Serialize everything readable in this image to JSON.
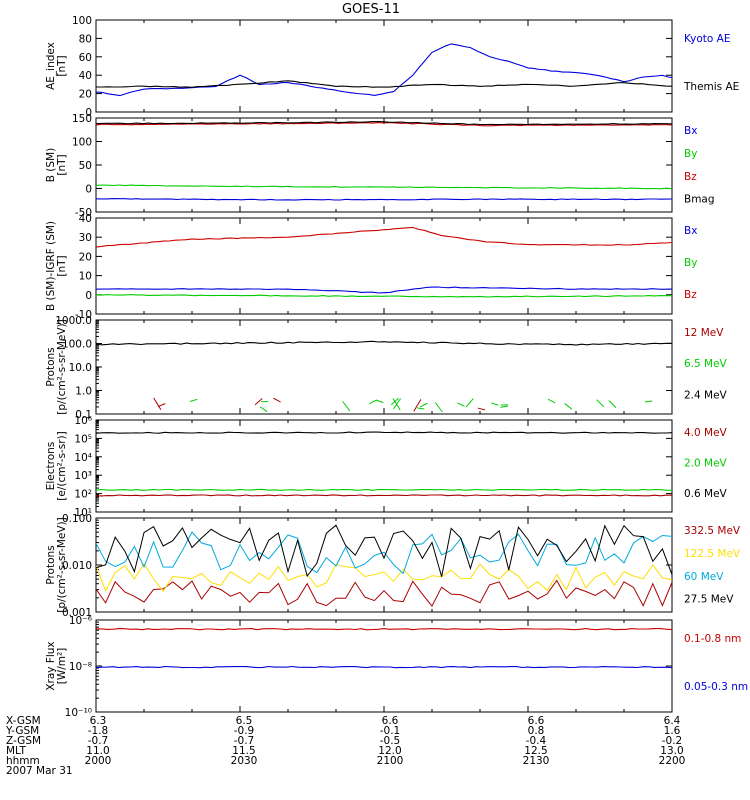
{
  "title": "GOES-11",
  "colors": {
    "blue": "#0000dd",
    "black": "#000000",
    "green": "#00cc00",
    "red": "#cc0000",
    "darkred": "#aa0000",
    "yellow": "#ffdd00",
    "cyan": "#00aadd"
  },
  "chart_data": [
    {
      "type": "line",
      "ylabel_lines": [
        "AE_index",
        "[nT]"
      ],
      "ylim": [
        0,
        100
      ],
      "yticks": [
        "0",
        "20",
        "40",
        "60",
        "80",
        "100"
      ],
      "x": [
        "2000",
        "2030",
        "2100",
        "2130",
        "2200"
      ],
      "series": [
        {
          "name": "Kyoto AE",
          "color": "#0000dd",
          "points": [
            [
              0,
              22
            ],
            [
              5,
              18
            ],
            [
              10,
              25
            ],
            [
              18,
              26
            ],
            [
              25,
              28
            ],
            [
              30,
              40
            ],
            [
              34,
              30
            ],
            [
              40,
              32
            ],
            [
              46,
              27
            ],
            [
              52,
              22
            ],
            [
              58,
              18
            ],
            [
              62,
              22
            ],
            [
              66,
              40
            ],
            [
              70,
              65
            ],
            [
              74,
              74
            ],
            [
              78,
              70
            ],
            [
              82,
              60
            ],
            [
              86,
              55
            ],
            [
              90,
              48
            ],
            [
              96,
              44
            ],
            [
              102,
              42
            ],
            [
              106,
              38
            ],
            [
              110,
              33
            ],
            [
              114,
              38
            ],
            [
              118,
              40
            ],
            [
              124,
              32
            ],
            [
              130,
              24
            ],
            [
              134,
              22
            ],
            [
              138,
              40
            ],
            [
              140,
              36
            ],
            [
              144,
              32
            ],
            [
              148,
              22
            ],
            [
              152,
              22
            ],
            [
              156,
              35
            ],
            [
              160,
              80
            ],
            [
              163,
              93
            ],
            [
              166,
              88
            ],
            [
              170,
              60
            ],
            [
              174,
              40
            ],
            [
              178,
              35
            ],
            [
              180,
              30
            ]
          ]
        },
        {
          "name": "Themis AE",
          "color": "#000000",
          "points": [
            [
              0,
              27
            ],
            [
              10,
              28
            ],
            [
              20,
              27
            ],
            [
              30,
              30
            ],
            [
              40,
              34
            ],
            [
              50,
              28
            ],
            [
              60,
              27
            ],
            [
              70,
              30
            ],
            [
              80,
              28
            ],
            [
              90,
              30
            ],
            [
              100,
              28
            ],
            [
              110,
              32
            ],
            [
              120,
              28
            ],
            [
              130,
              30
            ],
            [
              140,
              28
            ],
            [
              150,
              30
            ],
            [
              160,
              26
            ],
            [
              170,
              24
            ],
            [
              176,
              34
            ],
            [
              180,
              30
            ]
          ]
        }
      ]
    },
    {
      "type": "line",
      "ylabel_lines": [
        "B (SM)",
        "[nT]"
      ],
      "ylim": [
        -50,
        150
      ],
      "yticks": [
        "-50",
        "0",
        "50",
        "100",
        "150"
      ],
      "series": [
        {
          "name": "Bx",
          "color": "#0000dd",
          "points": [
            [
              0,
              -22
            ],
            [
              40,
              -24
            ],
            [
              80,
              -23
            ],
            [
              120,
              -23
            ],
            [
              180,
              -21
            ]
          ]
        },
        {
          "name": "By",
          "color": "#00cc00",
          "points": [
            [
              0,
              7
            ],
            [
              40,
              4
            ],
            [
              80,
              2
            ],
            [
              120,
              0
            ],
            [
              180,
              -3
            ]
          ]
        },
        {
          "name": "Bz",
          "color": "#cc0000",
          "points": [
            [
              0,
              136
            ],
            [
              40,
              138
            ],
            [
              60,
              140
            ],
            [
              80,
              134
            ],
            [
              120,
              136
            ],
            [
              140,
              134
            ],
            [
              180,
              140
            ]
          ]
        },
        {
          "name": "Bmag",
          "color": "#000000",
          "points": [
            [
              0,
              138
            ],
            [
              40,
              140
            ],
            [
              60,
              142
            ],
            [
              80,
              136
            ],
            [
              120,
              138
            ],
            [
              140,
              136
            ],
            [
              180,
              142
            ]
          ]
        }
      ]
    },
    {
      "type": "line",
      "ylabel_lines": [
        "B (SM)-IGRF (SM)",
        "[nT]"
      ],
      "ylim": [
        -10,
        40
      ],
      "yticks": [
        "-10",
        "0",
        "10",
        "20",
        "30",
        "40"
      ],
      "series": [
        {
          "name": "Bx",
          "color": "#0000dd",
          "points": [
            [
              0,
              3
            ],
            [
              40,
              3
            ],
            [
              60,
              1
            ],
            [
              70,
              4
            ],
            [
              100,
              3
            ],
            [
              140,
              3
            ],
            [
              180,
              3
            ]
          ]
        },
        {
          "name": "By",
          "color": "#00cc00",
          "points": [
            [
              0,
              0
            ],
            [
              40,
              -0.5
            ],
            [
              80,
              -1
            ],
            [
              120,
              -0.5
            ],
            [
              180,
              0
            ]
          ]
        },
        {
          "name": "Bz",
          "color": "#cc0000",
          "points": [
            [
              0,
              25
            ],
            [
              20,
              29
            ],
            [
              40,
              30
            ],
            [
              55,
              33
            ],
            [
              66,
              35
            ],
            [
              72,
              31
            ],
            [
              80,
              28
            ],
            [
              90,
              26
            ],
            [
              110,
              26
            ],
            [
              126,
              28
            ],
            [
              136,
              32
            ],
            [
              144,
              28
            ],
            [
              150,
              25
            ],
            [
              160,
              28
            ],
            [
              170,
              32
            ],
            [
              180,
              33
            ]
          ]
        }
      ]
    },
    {
      "type": "line",
      "ylabel_lines": [
        "Protons",
        "[p/(cm²-s-sr-MeV)]"
      ],
      "yscale": "log",
      "ylim": [
        0.1,
        1000
      ],
      "yticks": [
        "0.1",
        "1.0",
        "10.0",
        "100.0",
        "1000.0"
      ],
      "series": [
        {
          "name": "12 MeV",
          "color": "#aa0000",
          "points": []
        },
        {
          "name": "6.5 MeV",
          "color": "#00cc00",
          "points": []
        },
        {
          "name": "2.4 MeV",
          "color": "#000000",
          "points": [
            [
              0,
              90
            ],
            [
              20,
              100
            ],
            [
              40,
              110
            ],
            [
              60,
              120
            ],
            [
              80,
              100
            ],
            [
              100,
              90
            ],
            [
              120,
              100
            ],
            [
              140,
              95
            ],
            [
              160,
              100
            ],
            [
              180,
              130
            ]
          ]
        }
      ]
    },
    {
      "type": "line",
      "ylabel_lines": [
        "Electrons",
        "[e/(cm²-s-sr)]"
      ],
      "yscale": "log",
      "ylim": [
        10,
        1000000
      ],
      "yticks": [
        "10¹",
        "10²",
        "10³",
        "10⁴",
        "10⁵",
        "10⁶"
      ],
      "series": [
        {
          "name": "4.0 MeV",
          "color": "#aa0000",
          "points": [
            [
              0,
              80
            ],
            [
              180,
              80
            ]
          ]
        },
        {
          "name": "2.0 MeV",
          "color": "#00cc00",
          "points": [
            [
              0,
              160
            ],
            [
              180,
              160
            ]
          ]
        },
        {
          "name": "0.6 MeV",
          "color": "#000000",
          "points": [
            [
              0,
              200000
            ],
            [
              60,
              210000
            ],
            [
              120,
              200000
            ],
            [
              180,
              200000
            ]
          ]
        }
      ]
    },
    {
      "type": "line",
      "ylabel_lines": [
        "Protons",
        "[p/(cm²-s-sr-MeV)]"
      ],
      "yscale": "log",
      "ylim": [
        0.001,
        0.1
      ],
      "yticks": [
        "0.001",
        "0.010",
        "0.100"
      ],
      "series": [
        {
          "name": "332.5 MeV",
          "color": "#aa0000",
          "points": []
        },
        {
          "name": "122.5 MeV",
          "color": "#ffdd00",
          "points": []
        },
        {
          "name": "60 MeV",
          "color": "#00aadd",
          "points": []
        },
        {
          "name": "27.5 MeV",
          "color": "#000000",
          "points": []
        }
      ]
    },
    {
      "type": "line",
      "ylabel_lines": [
        "Xray Flux",
        "[W/m²]"
      ],
      "yscale": "log",
      "ylim": [
        1e-10,
        1e-06
      ],
      "yticks": [
        "10⁻¹⁰",
        "10⁻⁸",
        "10⁻⁶"
      ],
      "series": [
        {
          "name": "0.1-0.8 nm",
          "color": "#cc0000",
          "points": [
            [
              0,
              4e-07
            ],
            [
              180,
              4e-07
            ]
          ]
        },
        {
          "name": "0.05-0.3 nm",
          "color": "#0000dd",
          "points": [
            [
              0,
              9e-09
            ],
            [
              180,
              9e-09
            ]
          ]
        }
      ]
    }
  ],
  "footer": {
    "date": "2007 Mar 31",
    "rows": [
      {
        "label": "X-GSM",
        "values": [
          "6.3",
          "6.5",
          "6.6",
          "6.6",
          "6.4"
        ]
      },
      {
        "label": "Y-GSM",
        "values": [
          "-1.8",
          "-0.9",
          "-0.1",
          "0.8",
          "1.6"
        ]
      },
      {
        "label": "Z-GSM",
        "values": [
          "-0.7",
          "-0.7",
          "-0.5",
          "-0.4",
          "-0.2"
        ]
      },
      {
        "label": "MLT",
        "values": [
          "11.0",
          "11.5",
          "12.0",
          "12.5",
          "13.0"
        ]
      },
      {
        "label": "hhmm",
        "values": [
          "2000",
          "2030",
          "2100",
          "2130",
          "2200"
        ]
      }
    ]
  }
}
